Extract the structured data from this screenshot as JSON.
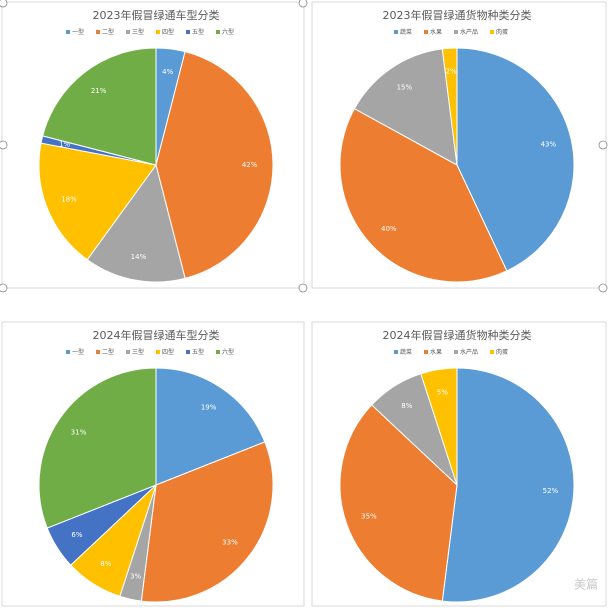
{
  "chart_data": [
    {
      "type": "pie",
      "title": "2023年假冒绿通车型分类",
      "categories": [
        "一型",
        "二型",
        "三型",
        "四型",
        "五型",
        "六型"
      ],
      "values": [
        4,
        42,
        14,
        18,
        1,
        21
      ],
      "value_labels": [
        "4%",
        "42%",
        "14%",
        "18%",
        "1%",
        "21%"
      ],
      "colors": [
        "#5b9bd5",
        "#ed7d31",
        "#a5a5a5",
        "#ffc000",
        "#4472c4",
        "#70ad47"
      ]
    },
    {
      "type": "pie",
      "title": "2023年假冒绿通货物种类分类",
      "categories": [
        "蔬菜",
        "水果",
        "水产品",
        "肉蛋"
      ],
      "values": [
        43,
        40,
        15,
        2
      ],
      "value_labels": [
        "43%",
        "40%",
        "15%",
        "2%"
      ],
      "colors": [
        "#5b9bd5",
        "#ed7d31",
        "#a5a5a5",
        "#ffc000"
      ]
    },
    {
      "type": "pie",
      "title": "2024年假冒绿通车型分类",
      "categories": [
        "一型",
        "二型",
        "三型",
        "四型",
        "五型",
        "六型"
      ],
      "values": [
        19,
        33,
        3,
        8,
        6,
        31
      ],
      "value_labels": [
        "19%",
        "33%",
        "3%",
        "8%",
        "6%",
        "31%"
      ],
      "colors": [
        "#5b9bd5",
        "#ed7d31",
        "#a5a5a5",
        "#ffc000",
        "#4472c4",
        "#70ad47"
      ]
    },
    {
      "type": "pie",
      "title": "2024年假冒绿通货物种类分类",
      "categories": [
        "蔬菜",
        "水果",
        "水产品",
        "肉蛋"
      ],
      "values": [
        52,
        35,
        8,
        5
      ],
      "value_labels": [
        "52%",
        "35%",
        "8%",
        "5%"
      ],
      "colors": [
        "#5b9bd5",
        "#ed7d31",
        "#a5a5a5",
        "#ffc000"
      ]
    }
  ],
  "watermark": "美篇"
}
